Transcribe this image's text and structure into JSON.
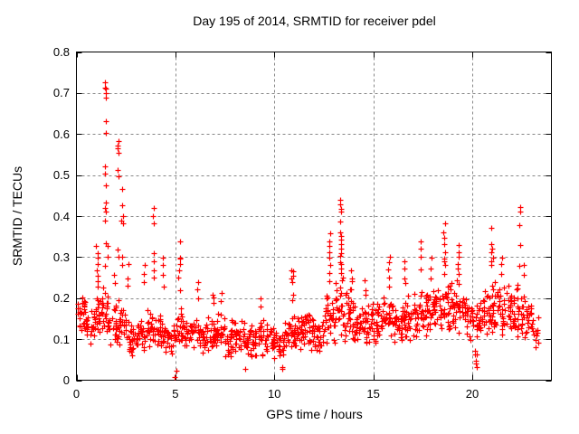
{
  "figure": {
    "background": "#ffffff"
  },
  "chart_data": {
    "type": "scatter",
    "title": "Day 195 of 2014, SRMTID for receiver pdel",
    "xlabel": "GPS time / hours",
    "ylabel": "SRMTID / TECUs",
    "xlim": [
      0,
      24
    ],
    "ylim": [
      0,
      0.8
    ],
    "xticks": [
      {
        "v": 0,
        "label": "0"
      },
      {
        "v": 5,
        "label": "5"
      },
      {
        "v": 10,
        "label": "10"
      },
      {
        "v": 15,
        "label": "15"
      },
      {
        "v": 20,
        "label": "20"
      }
    ],
    "yticks": [
      {
        "v": 0.0,
        "label": "0"
      },
      {
        "v": 0.1,
        "label": "0.1"
      },
      {
        "v": 0.2,
        "label": "0.2"
      },
      {
        "v": 0.3,
        "label": "0.3"
      },
      {
        "v": 0.4,
        "label": "0.4"
      },
      {
        "v": 0.5,
        "label": "0.5"
      },
      {
        "v": 0.6,
        "label": "0.6"
      },
      {
        "v": 0.7,
        "label": "0.7"
      },
      {
        "v": 0.8,
        "label": "0.8"
      }
    ],
    "grid": true,
    "legend": "none",
    "marker": "plus",
    "marker_size_px": 7,
    "colors": {
      "marker": "#ff0000",
      "grid": "#888888",
      "axis": "#000000",
      "text": "#000000"
    },
    "seed": 20140195,
    "band_bins_format": "[x_start_hours, x_end_hours, y_min_TECUs, y_max_TECUs, point_count] — dense baseline band of the scatter",
    "band_bins": [
      [
        0.05,
        0.5,
        0.1,
        0.21,
        30
      ],
      [
        0.5,
        1.0,
        0.08,
        0.18,
        26
      ],
      [
        1.0,
        1.5,
        0.1,
        0.24,
        30
      ],
      [
        1.5,
        2.0,
        0.08,
        0.21,
        30
      ],
      [
        2.0,
        2.5,
        0.07,
        0.2,
        30
      ],
      [
        2.5,
        3.0,
        0.05,
        0.16,
        28
      ],
      [
        3.0,
        3.5,
        0.07,
        0.16,
        26
      ],
      [
        3.5,
        4.0,
        0.07,
        0.18,
        26
      ],
      [
        4.0,
        4.5,
        0.07,
        0.17,
        26
      ],
      [
        4.5,
        5.0,
        0.06,
        0.15,
        26
      ],
      [
        5.0,
        5.5,
        0.07,
        0.18,
        26
      ],
      [
        5.5,
        6.0,
        0.07,
        0.16,
        26
      ],
      [
        6.0,
        6.5,
        0.06,
        0.16,
        26
      ],
      [
        6.5,
        7.0,
        0.06,
        0.17,
        26
      ],
      [
        7.0,
        7.5,
        0.06,
        0.18,
        28
      ],
      [
        7.5,
        8.0,
        0.05,
        0.15,
        26
      ],
      [
        8.0,
        8.5,
        0.05,
        0.16,
        26
      ],
      [
        8.5,
        9.0,
        0.05,
        0.14,
        26
      ],
      [
        9.0,
        9.5,
        0.05,
        0.15,
        26
      ],
      [
        9.5,
        10.0,
        0.05,
        0.14,
        26
      ],
      [
        10.0,
        10.5,
        0.05,
        0.13,
        24
      ],
      [
        10.5,
        11.0,
        0.06,
        0.16,
        26
      ],
      [
        11.0,
        11.5,
        0.07,
        0.17,
        28
      ],
      [
        11.5,
        12.0,
        0.07,
        0.18,
        28
      ],
      [
        12.0,
        12.5,
        0.06,
        0.16,
        26
      ],
      [
        12.5,
        13.0,
        0.07,
        0.22,
        30
      ],
      [
        13.0,
        13.5,
        0.08,
        0.28,
        30
      ],
      [
        13.5,
        14.0,
        0.08,
        0.24,
        30
      ],
      [
        14.0,
        14.5,
        0.08,
        0.2,
        28
      ],
      [
        14.5,
        15.0,
        0.08,
        0.2,
        28
      ],
      [
        15.0,
        15.5,
        0.08,
        0.19,
        28
      ],
      [
        15.5,
        16.0,
        0.09,
        0.22,
        28
      ],
      [
        16.0,
        16.5,
        0.08,
        0.2,
        28
      ],
      [
        16.5,
        17.0,
        0.09,
        0.21,
        28
      ],
      [
        17.0,
        17.5,
        0.09,
        0.22,
        28
      ],
      [
        17.5,
        18.0,
        0.09,
        0.22,
        28
      ],
      [
        18.0,
        18.5,
        0.1,
        0.24,
        30
      ],
      [
        18.5,
        19.0,
        0.1,
        0.26,
        30
      ],
      [
        19.0,
        19.5,
        0.1,
        0.25,
        28
      ],
      [
        19.5,
        20.0,
        0.08,
        0.22,
        26
      ],
      [
        20.0,
        20.5,
        0.06,
        0.2,
        24
      ],
      [
        20.5,
        21.0,
        0.1,
        0.24,
        28
      ],
      [
        21.0,
        21.5,
        0.1,
        0.26,
        30
      ],
      [
        21.5,
        22.0,
        0.08,
        0.24,
        28
      ],
      [
        22.0,
        22.5,
        0.1,
        0.24,
        30
      ],
      [
        22.5,
        23.0,
        0.1,
        0.22,
        30
      ],
      [
        23.0,
        23.4,
        0.08,
        0.16,
        12
      ]
    ],
    "spike_columns_format": "vertical bursts / outliers: x in hours, values in TECUs",
    "spike_columns": [
      {
        "x": 1.05,
        "values": [
          0.325,
          0.31,
          0.3,
          0.285,
          0.27,
          0.255,
          0.24
        ]
      },
      {
        "x": 1.45,
        "values": [
          0.725,
          0.715,
          0.71,
          0.7,
          0.69,
          0.635,
          0.6,
          0.52,
          0.505,
          0.475,
          0.43,
          0.42,
          0.41,
          0.39,
          0.33,
          0.28
        ]
      },
      {
        "x": 1.55,
        "values": [
          0.33,
          0.3
        ]
      },
      {
        "x": 1.9,
        "values": [
          0.26,
          0.24
        ]
      },
      {
        "x": 2.1,
        "values": [
          0.585,
          0.575,
          0.565,
          0.555,
          0.515,
          0.5,
          0.32,
          0.3
        ]
      },
      {
        "x": 2.3,
        "values": [
          0.465,
          0.425,
          0.4,
          0.39,
          0.38,
          0.3,
          0.28
        ]
      },
      {
        "x": 2.6,
        "values": [
          0.28,
          0.25,
          0.23
        ]
      },
      {
        "x": 3.45,
        "values": [
          0.28,
          0.26,
          0.24
        ]
      },
      {
        "x": 3.9,
        "values": [
          0.42,
          0.4,
          0.38,
          0.31,
          0.29,
          0.27,
          0.25
        ]
      },
      {
        "x": 4.4,
        "values": [
          0.3,
          0.28,
          0.26,
          0.23
        ]
      },
      {
        "x": 5.0,
        "values": [
          0.02,
          0.01
        ]
      },
      {
        "x": 5.2,
        "values": [
          0.34,
          0.3,
          0.295,
          0.285,
          0.27,
          0.25,
          0.22
        ]
      },
      {
        "x": 6.1,
        "values": [
          0.24,
          0.22,
          0.2
        ]
      },
      {
        "x": 6.9,
        "values": [
          0.21,
          0.2,
          0.19
        ]
      },
      {
        "x": 7.3,
        "values": [
          0.21,
          0.195
        ]
      },
      {
        "x": 8.5,
        "values": [
          0.025
        ]
      },
      {
        "x": 9.3,
        "values": [
          0.2,
          0.18
        ]
      },
      {
        "x": 10.4,
        "values": [
          0.035,
          0.03
        ]
      },
      {
        "x": 10.9,
        "values": [
          0.27,
          0.265,
          0.255,
          0.25,
          0.24,
          0.21,
          0.195
        ]
      },
      {
        "x": 12.8,
        "values": [
          0.36,
          0.34,
          0.33,
          0.31,
          0.3,
          0.28,
          0.26,
          0.24
        ]
      },
      {
        "x": 13.35,
        "values": [
          0.44,
          0.43,
          0.415,
          0.41,
          0.39,
          0.36,
          0.35,
          0.34,
          0.33,
          0.32,
          0.31,
          0.3,
          0.29,
          0.28,
          0.27,
          0.26
        ]
      },
      {
        "x": 13.9,
        "values": [
          0.27,
          0.25,
          0.24,
          0.22
        ]
      },
      {
        "x": 14.6,
        "values": [
          0.245,
          0.22,
          0.21
        ]
      },
      {
        "x": 15.8,
        "values": [
          0.3,
          0.29,
          0.27,
          0.25,
          0.23
        ]
      },
      {
        "x": 16.6,
        "values": [
          0.29,
          0.27,
          0.25,
          0.24
        ]
      },
      {
        "x": 17.4,
        "values": [
          0.34,
          0.32,
          0.3,
          0.27
        ]
      },
      {
        "x": 17.9,
        "values": [
          0.295,
          0.27,
          0.25
        ]
      },
      {
        "x": 18.6,
        "values": [
          0.38,
          0.36,
          0.35,
          0.33,
          0.31,
          0.3,
          0.29,
          0.28
        ]
      },
      {
        "x": 19.3,
        "values": [
          0.33,
          0.31,
          0.3,
          0.28,
          0.27,
          0.26
        ]
      },
      {
        "x": 20.2,
        "values": [
          0.065,
          0.05,
          0.04,
          0.03
        ]
      },
      {
        "x": 21.0,
        "values": [
          0.375,
          0.33,
          0.32,
          0.31,
          0.3,
          0.29,
          0.28
        ]
      },
      {
        "x": 21.5,
        "values": [
          0.3,
          0.28,
          0.26
        ]
      },
      {
        "x": 22.4,
        "values": [
          0.42,
          0.41,
          0.38,
          0.33,
          0.28
        ]
      },
      {
        "x": 22.6,
        "values": [
          0.28,
          0.26
        ]
      }
    ]
  }
}
